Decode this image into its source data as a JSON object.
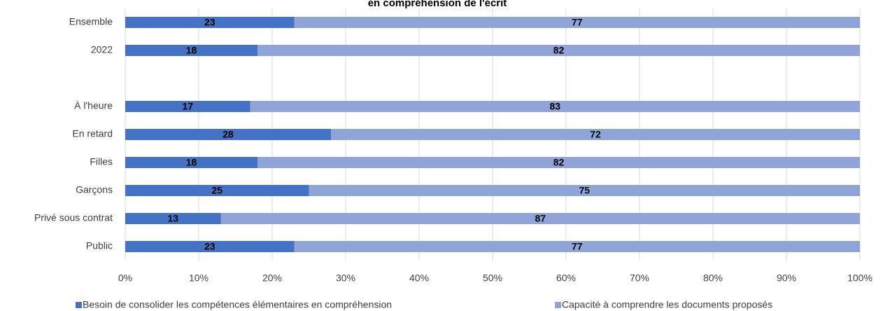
{
  "chart_data": {
    "type": "stacked-bar-horizontal",
    "title": "en compréhension de l'écrit",
    "categories": [
      "Ensemble",
      "2022",
      null,
      "À l'heure",
      "En retard",
      "Filles",
      "Garçons",
      "Privé sous contrat",
      "Public"
    ],
    "series": [
      {
        "name": "Besoin de consolider les compétences élémentaires en compréhension",
        "color": "#4472c4",
        "values": [
          23,
          18,
          null,
          17,
          28,
          18,
          25,
          13,
          23
        ]
      },
      {
        "name": "Capacité à comprendre les documents proposés",
        "color": "#8fa5d9",
        "values": [
          77,
          82,
          null,
          83,
          72,
          82,
          75,
          87,
          77
        ]
      }
    ],
    "xlim": [
      0,
      100
    ],
    "xticks": [
      {
        "value": 0,
        "label": "0%"
      },
      {
        "value": 10,
        "label": "10%"
      },
      {
        "value": 20,
        "label": "20%"
      },
      {
        "value": 30,
        "label": "30%"
      },
      {
        "value": 40,
        "label": "40%"
      },
      {
        "value": 50,
        "label": "50%"
      },
      {
        "value": 60,
        "label": "60%"
      },
      {
        "value": 70,
        "label": "70%"
      },
      {
        "value": 80,
        "label": "80%"
      },
      {
        "value": 90,
        "label": "90%"
      },
      {
        "value": 100,
        "label": "100%"
      }
    ],
    "grid": true,
    "legend": "bottom"
  }
}
